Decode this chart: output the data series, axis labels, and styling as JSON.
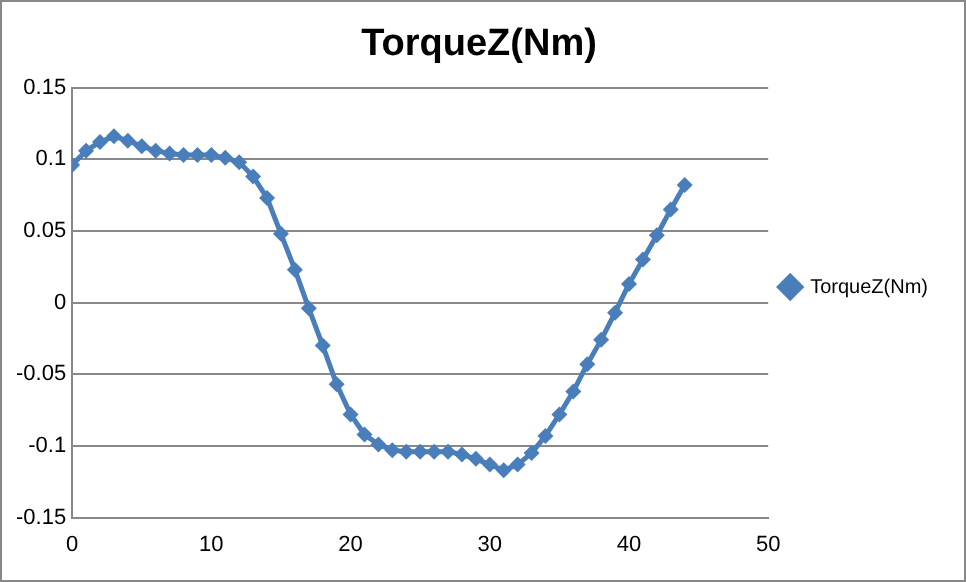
{
  "chart_data": {
    "type": "line",
    "title": "TorqueZ(Nm)",
    "x": [
      0,
      1,
      2,
      3,
      4,
      5,
      6,
      7,
      8,
      9,
      10,
      11,
      12,
      13,
      14,
      15,
      16,
      17,
      18,
      19,
      20,
      21,
      22,
      23,
      24,
      25,
      26,
      27,
      28,
      29,
      30,
      31,
      32,
      33,
      34,
      35,
      36,
      37,
      38,
      39,
      40,
      41,
      42,
      43,
      44
    ],
    "series": [
      {
        "name": "TorqueZ(Nm)",
        "color": "#4a7ebb",
        "values": [
          0.096,
          0.106,
          0.112,
          0.116,
          0.113,
          0.109,
          0.106,
          0.104,
          0.103,
          0.103,
          0.103,
          0.101,
          0.098,
          0.088,
          0.073,
          0.048,
          0.023,
          -0.004,
          -0.03,
          -0.057,
          -0.078,
          -0.092,
          -0.099,
          -0.103,
          -0.104,
          -0.104,
          -0.104,
          -0.104,
          -0.106,
          -0.109,
          -0.113,
          -0.117,
          -0.113,
          -0.105,
          -0.093,
          -0.078,
          -0.062,
          -0.043,
          -0.026,
          -0.007,
          0.013,
          0.03,
          0.047,
          0.065,
          0.082
        ]
      }
    ],
    "xlim": [
      0,
      50
    ],
    "xticks": [
      0,
      10,
      20,
      30,
      40,
      50
    ],
    "ylim": [
      -0.15,
      0.15
    ],
    "yticks": [
      -0.15,
      -0.1,
      -0.05,
      0,
      0.05,
      0.1,
      0.15
    ],
    "grid": "y",
    "legend": "right",
    "marker": "diamond",
    "line_style": "solid"
  }
}
